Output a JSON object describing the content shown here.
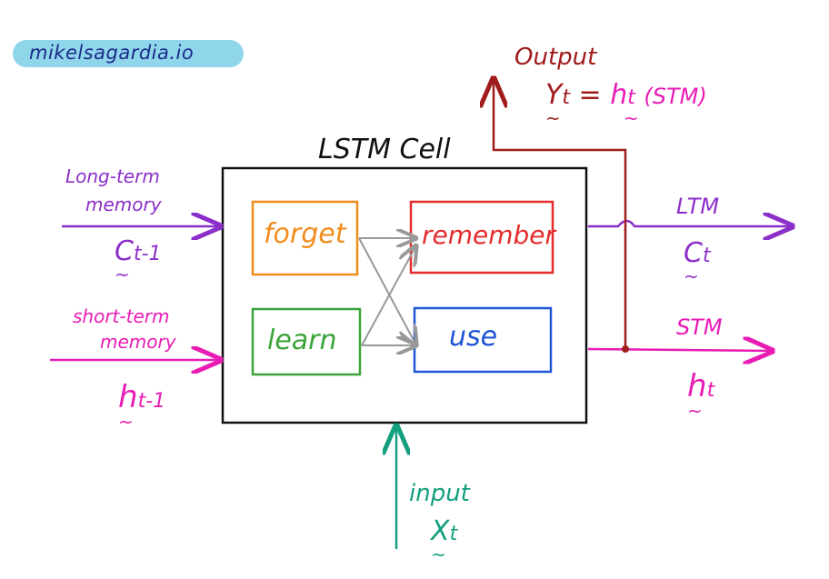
{
  "watermark": "mikelsagardia.io",
  "title": "LSTM Cell",
  "inputs": {
    "ltm_label_line1": "Long-term",
    "ltm_label_line2": "memory",
    "ltm_symbol": "C",
    "ltm_subscript": "t-1",
    "stm_label_line1": "short-term",
    "stm_label_line2": "memory",
    "stm_symbol": "h",
    "stm_subscript": "t-1",
    "input_label": "input",
    "input_symbol": "X",
    "input_subscript": "t"
  },
  "outputs": {
    "output_label": "Output",
    "output_eq_symbol": "Y",
    "output_eq_sub": "t",
    "output_eq_equals": "=",
    "output_eq_h": "h",
    "output_eq_h_sub": "t",
    "output_eq_note": "(STM)",
    "ltm_label": "LTM",
    "ltm_symbol": "C",
    "ltm_subscript": "t",
    "stm_label": "STM",
    "stm_symbol": "h",
    "stm_subscript": "t"
  },
  "gates": {
    "forget": "forget",
    "learn": "learn",
    "remember": "remember",
    "use": "use"
  },
  "colors": {
    "ltm": "#8b2fc9",
    "stm": "#e81cb4",
    "input": "#139e7e",
    "output": "#a01c1c",
    "forget": "#f28c1e",
    "learn": "#3aa43a",
    "remember": "#e52b2b",
    "use": "#1f55d6",
    "arrows_internal": "#999999",
    "watermark_bg": "#8fd6ea",
    "watermark_text": "#1b2a8a"
  }
}
